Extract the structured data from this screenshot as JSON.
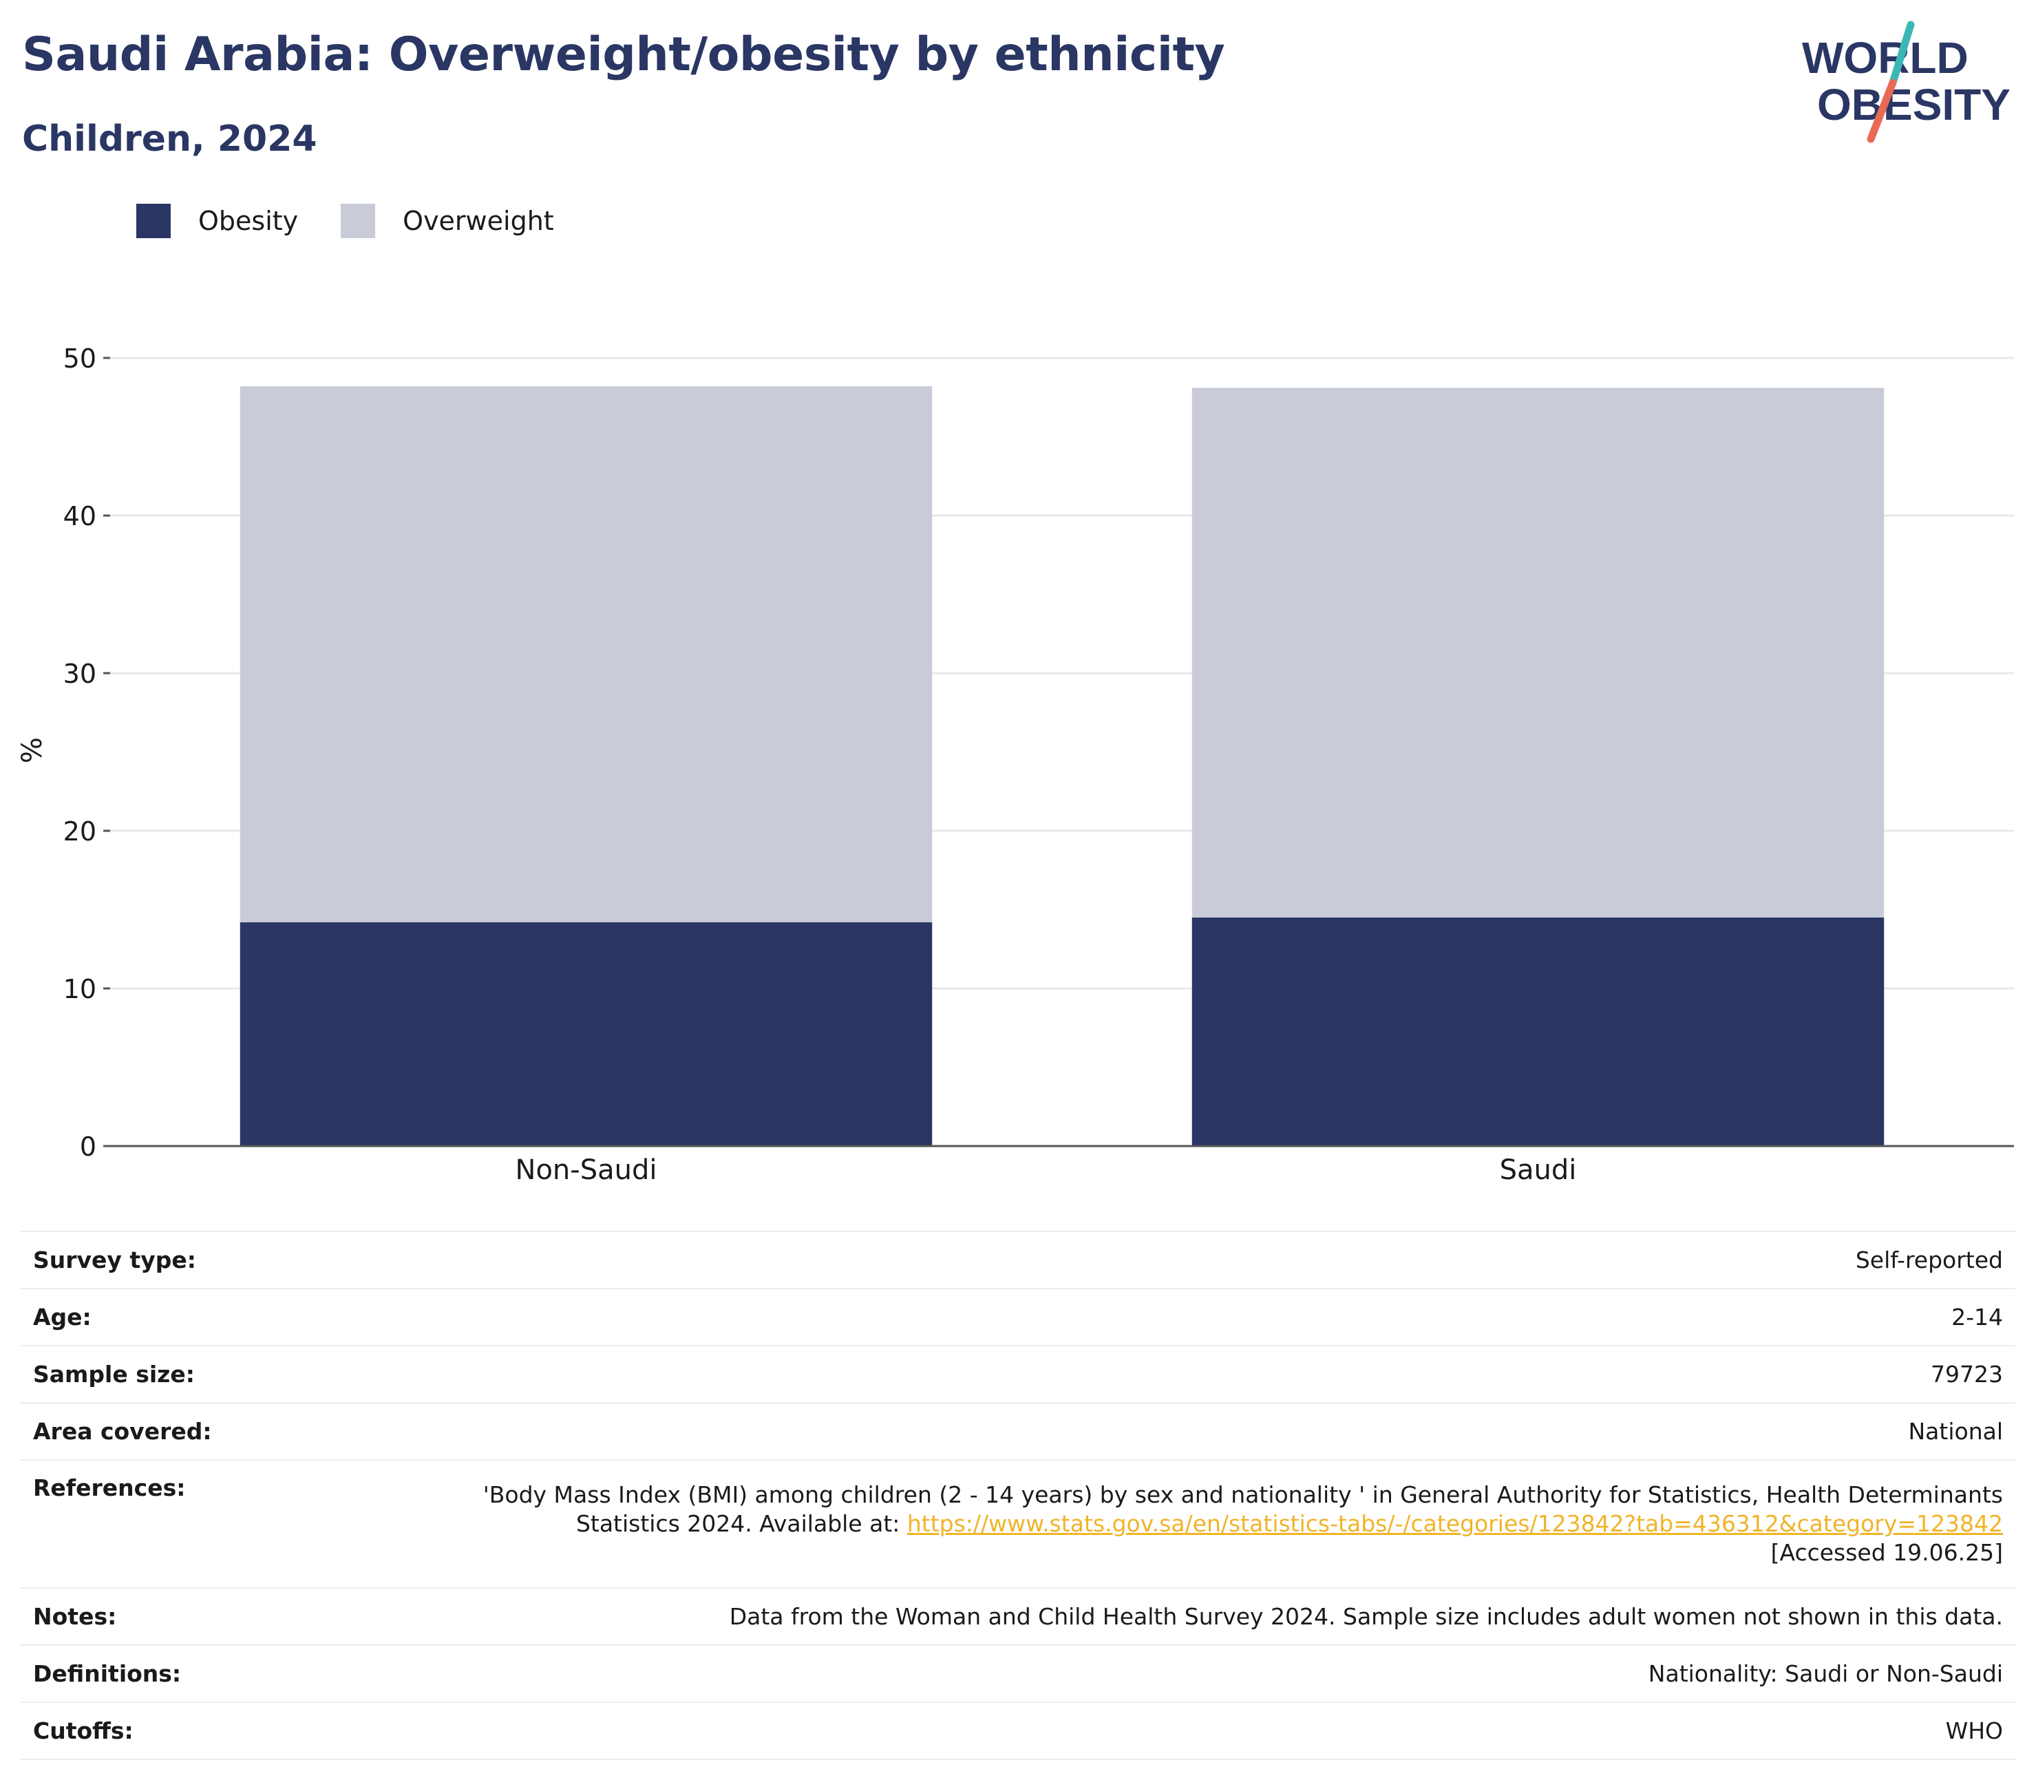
{
  "header": {
    "title": "Saudi Arabia: Overweight/obesity by ethnicity",
    "subtitle": "Children, 2024"
  },
  "logo": {
    "line1": "WORLD",
    "line2": "OBESITY",
    "colors": {
      "text": "#2a3663",
      "slash_top": "#3bb8b5",
      "slash_bottom": "#e86a55"
    }
  },
  "colors": {
    "obesity": "#2a3663",
    "overweight": "#c9ccd8",
    "axis": "#555555",
    "grid": "#e8e8e8",
    "link": "#f0b429"
  },
  "chart_data": {
    "type": "bar",
    "stacked": true,
    "categories": [
      "Non-Saudi",
      "Saudi"
    ],
    "series": [
      {
        "name": "Obesity",
        "values": [
          14.2,
          14.5
        ]
      },
      {
        "name": "Overweight",
        "values": [
          34.0,
          33.6
        ]
      }
    ],
    "ylabel": "%",
    "ylim": [
      0,
      50
    ],
    "yticks": [
      0,
      10,
      20,
      30,
      40,
      50
    ],
    "grid": true,
    "legend": "top-left"
  },
  "info": [
    {
      "label": "Survey type:",
      "value": "Self-reported"
    },
    {
      "label": "Age:",
      "value": "2-14"
    },
    {
      "label": "Sample size:",
      "value": "79723"
    },
    {
      "label": "Area covered:",
      "value": "National"
    },
    {
      "label": "References:",
      "value_line1": "'Body Mass Index (BMI) among children (2 - 14 years) by sex and nationality ' in General Authority for Statistics, Health Determinants",
      "value_line2": "Statistics 2024. Available at: ",
      "link": "https://www.stats.gov.sa/en/statistics-tabs/-/categories/123842?tab=436312&category=123842",
      "value_line3": "[Accessed 19.06.25]"
    },
    {
      "label": "Notes:",
      "value": "Data from the Woman and Child Health Survey 2024. Sample size includes adult women not shown in this data."
    },
    {
      "label": "Definitions:",
      "value": "Nationality: Saudi or Non-Saudi"
    },
    {
      "label": "Cutoffs:",
      "value": "WHO"
    }
  ]
}
